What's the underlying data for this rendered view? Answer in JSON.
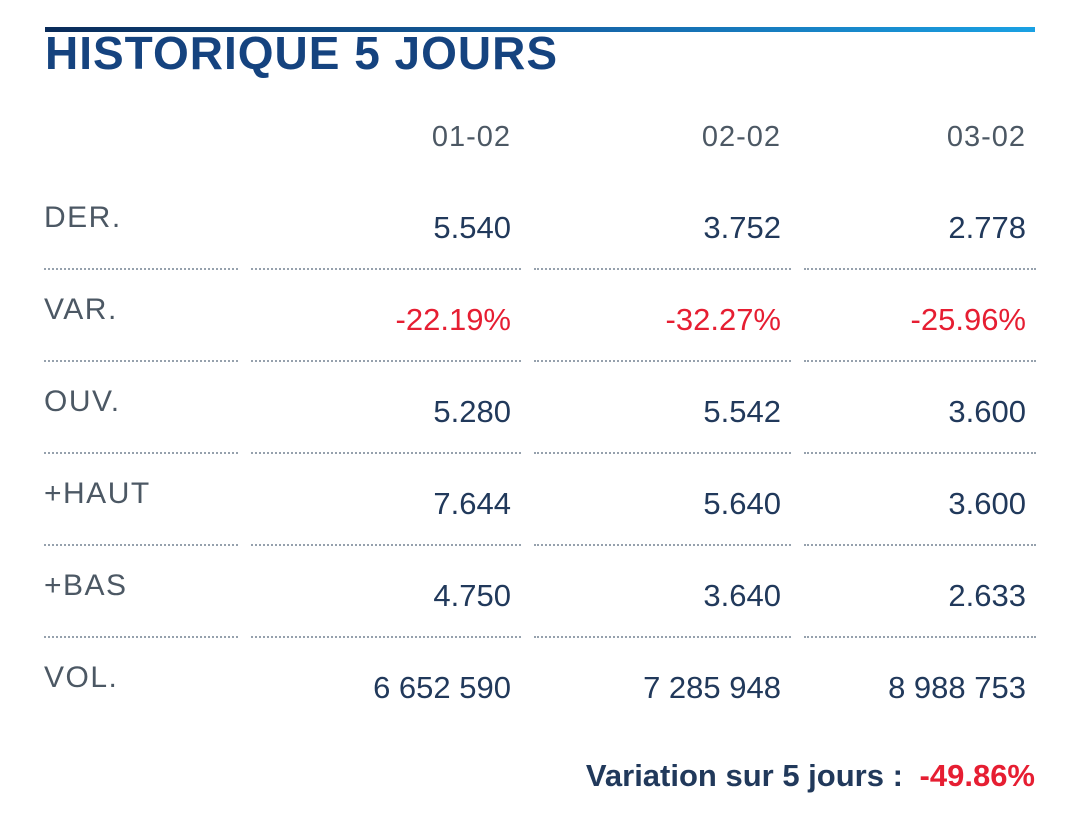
{
  "title": "HISTORIQUE 5 JOURS",
  "table": {
    "columns": [
      "01-02",
      "02-02",
      "03-02"
    ],
    "rows": [
      {
        "label": "DER.",
        "values": [
          "5.540",
          "3.752",
          "2.778"
        ]
      },
      {
        "label": "VAR.",
        "values": [
          "-22.19%",
          "-32.27%",
          "-25.96%"
        ]
      },
      {
        "label": "OUV.",
        "values": [
          "5.280",
          "5.542",
          "3.600"
        ]
      },
      {
        "label": "+HAUT",
        "values": [
          "7.644",
          "5.640",
          "3.600"
        ]
      },
      {
        "label": "+BAS",
        "values": [
          "4.750",
          "3.640",
          "2.633"
        ]
      },
      {
        "label": "VOL.",
        "values": [
          "6 652 590",
          "7 285 948",
          "8 988 753"
        ]
      }
    ]
  },
  "footer": {
    "label": "Variation sur 5 jours :",
    "value": "-49.86%"
  },
  "colors": {
    "title_blue": "#15437f",
    "value_navy": "#21395b",
    "label_slate": "#4c5864",
    "negative_red": "#e61e32",
    "dotted_line": "#96a1ad",
    "gradient_start": "#092b59",
    "gradient_end": "#1aa1e3"
  }
}
